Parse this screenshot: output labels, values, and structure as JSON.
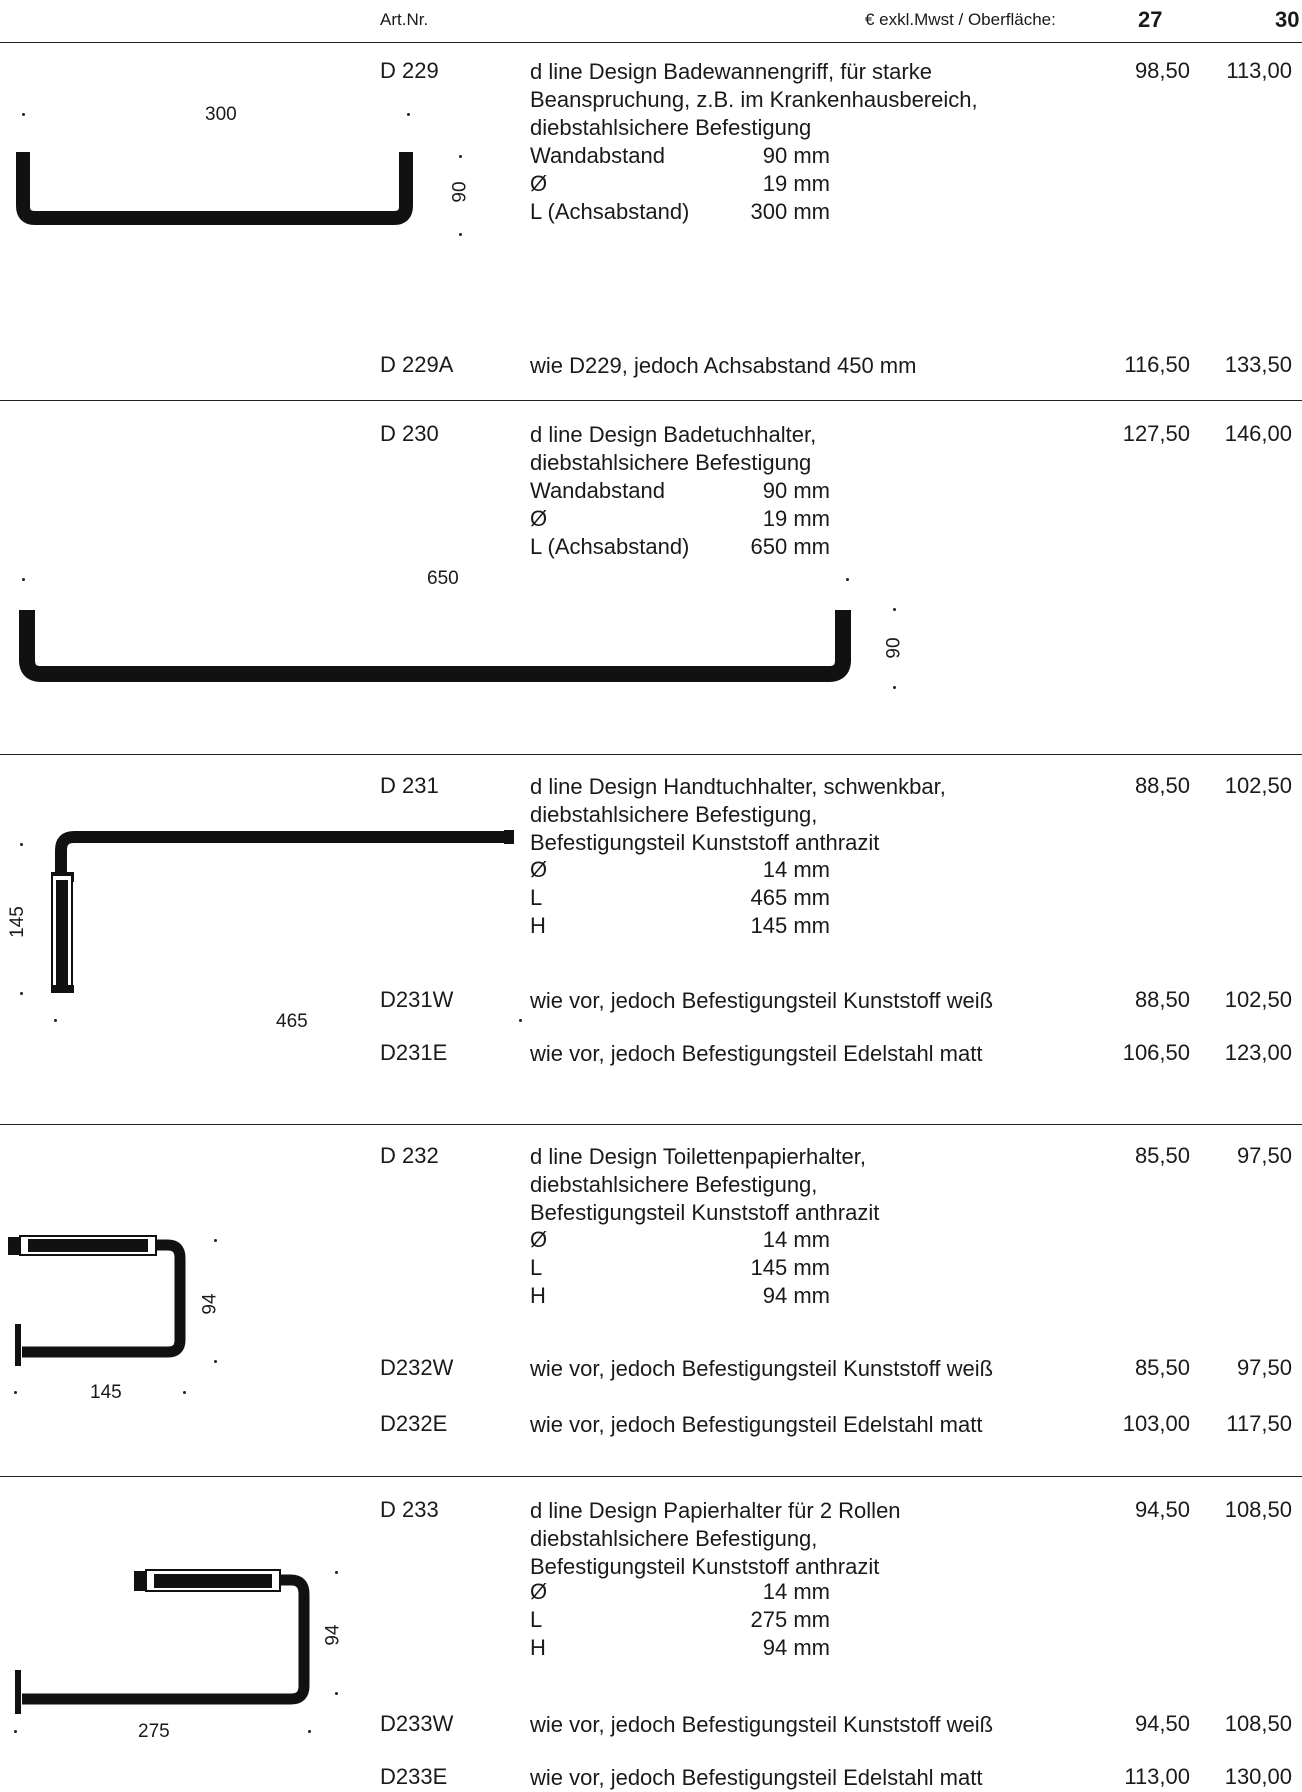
{
  "header": {
    "art_label": "Art.Nr.",
    "price_label": "€ exkl.Mwst / Oberfläche:",
    "finish_a": "27",
    "finish_b": "30"
  },
  "products": [
    {
      "art": "D 229",
      "lines": [
        "d line Design Badewannengriff, für starke",
        "Beanspruchung, z.B. im Krankenhausbereich,",
        "diebstahlsichere Befestigung"
      ],
      "specs": [
        {
          "k": "Wandabstand",
          "v": "90 mm"
        },
        {
          "k": "Ø",
          "v": "19 mm"
        },
        {
          "k": "L (Achsabstand)",
          "v": "300 mm"
        }
      ],
      "p27": "98,50",
      "p30": "113,00",
      "dims": {
        "width": "300",
        "height": "90"
      }
    },
    {
      "art": "D 229A",
      "lines": [
        "wie D229, jedoch Achsabstand 450 mm"
      ],
      "p27": "116,50",
      "p30": "133,50"
    },
    {
      "art": "D 230",
      "lines": [
        "d line Design Badetuchhalter,",
        "diebstahlsichere Befestigung"
      ],
      "specs": [
        {
          "k": "Wandabstand",
          "v": "90 mm"
        },
        {
          "k": "Ø",
          "v": "19 mm"
        },
        {
          "k": "L (Achsabstand)",
          "v": "650 mm"
        }
      ],
      "p27": "127,50",
      "p30": "146,00",
      "dims": {
        "width": "650",
        "height": "90"
      }
    },
    {
      "art": "D 231",
      "lines": [
        "d line Design Handtuchhalter, schwenkbar,",
        "diebstahlsichere Befestigung,",
        "Befestigungsteil Kunststoff anthrazit"
      ],
      "specs": [
        {
          "k": "Ø",
          "v": "14 mm"
        },
        {
          "k": "L",
          "v": "465 mm"
        },
        {
          "k": "H",
          "v": "145 mm"
        }
      ],
      "p27": "88,50",
      "p30": "102,50",
      "dims": {
        "width": "465",
        "height": "145"
      }
    },
    {
      "art": "D231W",
      "lines": [
        "wie vor, jedoch Befestigungsteil Kunststoff weiß"
      ],
      "p27": "88,50",
      "p30": "102,50"
    },
    {
      "art": "D231E",
      "lines": [
        "wie vor, jedoch Befestigungsteil Edelstahl matt"
      ],
      "p27": "106,50",
      "p30": "123,00"
    },
    {
      "art": "D 232",
      "lines": [
        "d line Design Toilettenpapierhalter,",
        "diebstahlsichere Befestigung,",
        "Befestigungsteil Kunststoff anthrazit"
      ],
      "specs": [
        {
          "k": "Ø",
          "v": "14 mm"
        },
        {
          "k": "L",
          "v": "145 mm"
        },
        {
          "k": "H",
          "v": "94 mm"
        }
      ],
      "p27": "85,50",
      "p30": "97,50",
      "dims": {
        "width": "145",
        "height": "94"
      }
    },
    {
      "art": "D232W",
      "lines": [
        "wie vor, jedoch Befestigungsteil Kunststoff weiß"
      ],
      "p27": "85,50",
      "p30": "97,50"
    },
    {
      "art": "D232E",
      "lines": [
        "wie vor, jedoch Befestigungsteil Edelstahl matt"
      ],
      "p27": "103,00",
      "p30": "117,50"
    },
    {
      "art": "D 233",
      "lines": [
        "d line Design Papierhalter für 2 Rollen",
        "diebstahlsichere Befestigung,",
        "Befestigungsteil Kunststoff anthrazit"
      ],
      "specs": [
        {
          "k": "Ø",
          "v": "14 mm"
        },
        {
          "k": "L",
          "v": "275 mm"
        },
        {
          "k": "H",
          "v": "94 mm"
        }
      ],
      "p27": "94,50",
      "p30": "108,50",
      "dims": {
        "width": "275",
        "height": "94"
      }
    },
    {
      "art": "D233W",
      "lines": [
        "wie vor, jedoch Befestigungsteil Kunststoff weiß"
      ],
      "p27": "94,50",
      "p30": "108,50"
    },
    {
      "art": "D233E",
      "lines": [
        "wie vor, jedoch Befestigungsteil Edelstahl matt"
      ],
      "p27": "113,00",
      "p30": "130,00"
    }
  ]
}
